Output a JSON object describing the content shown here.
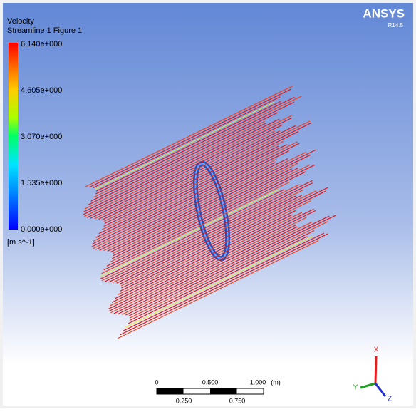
{
  "legend": {
    "variable": "Velocity",
    "object": "Streamline 1 Figure 1",
    "labels": [
      "6.140e+000",
      "4.605e+000",
      "3.070e+000",
      "1.535e+000",
      "0.000e+000"
    ],
    "unit": "[m s^-1]"
  },
  "logo": {
    "name": "ANSYS",
    "version": "R14.5"
  },
  "scale_bar": {
    "top_labels": [
      "0",
      "0.500",
      "1.000"
    ],
    "unit": "(m)",
    "bottom_labels": [
      "0.250",
      "0.750"
    ]
  },
  "triad": {
    "x": "X",
    "y": "Y",
    "z": "Z"
  }
}
